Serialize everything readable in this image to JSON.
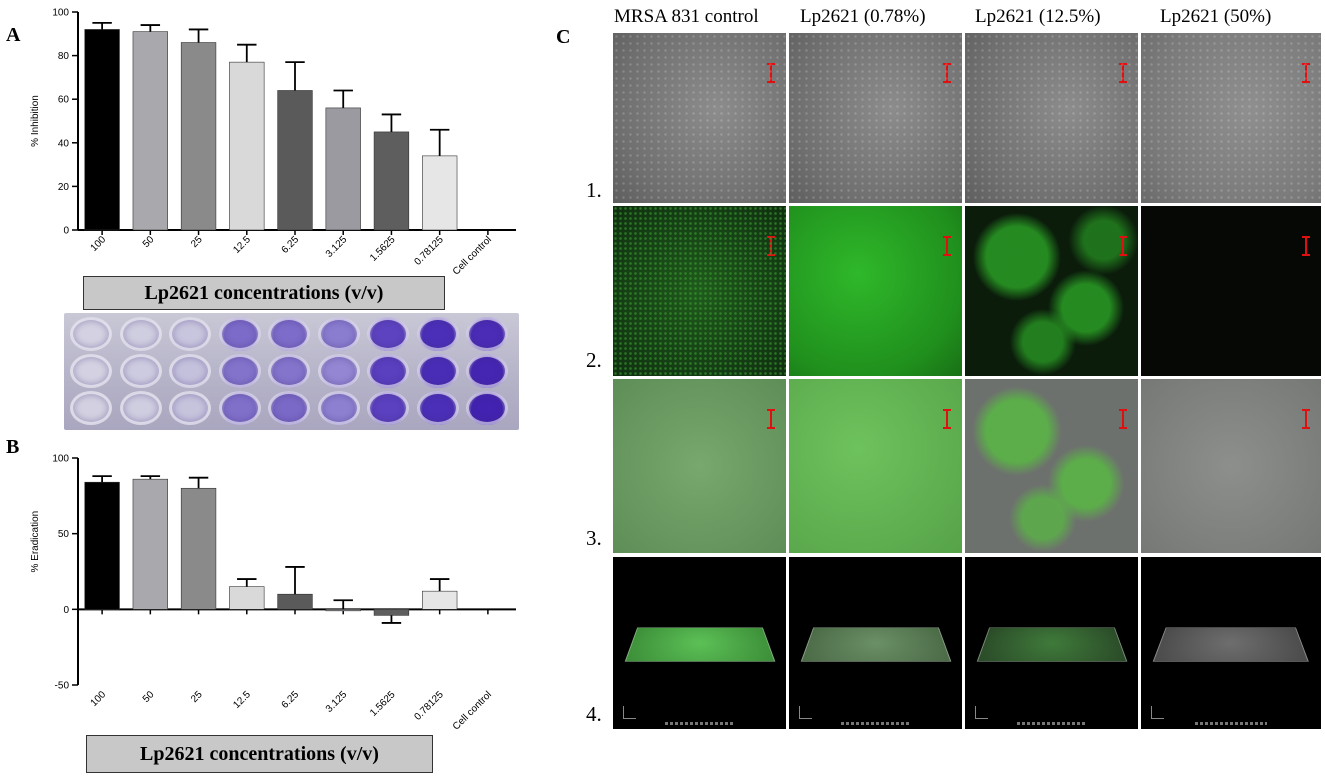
{
  "panels": {
    "a_letter": "A",
    "b_letter": "B",
    "c_letter": "C"
  },
  "concentration_box_label": "Lp2621 concentrations (v/v)",
  "chart_data": [
    {
      "type": "bar",
      "panel": "A",
      "ylabel": "% Inhibition",
      "ylim": [
        0,
        100
      ],
      "yticks": [
        0,
        20,
        40,
        60,
        80,
        100
      ],
      "categories": [
        "100",
        "50",
        "25",
        "12.5",
        "6.25",
        "3.125",
        "1.5625",
        "0.78125",
        "Cell control"
      ],
      "values": [
        92,
        91,
        86,
        77,
        64,
        56,
        45,
        34,
        0
      ],
      "error_plus": [
        3,
        3,
        6,
        8,
        13,
        8,
        8,
        12,
        0
      ],
      "colors": [
        "#000000",
        "#a9a9ad",
        "#8a8a8a",
        "#d9d9d9",
        "#5a5a5a",
        "#9a9aa0",
        "#5e5e5e",
        "#e6e6e6",
        "#ffffff"
      ],
      "grid": false
    },
    {
      "type": "bar",
      "panel": "B",
      "ylabel": "% Eradication",
      "ylim": [
        -50,
        100
      ],
      "yticks": [
        -50,
        0,
        50,
        100
      ],
      "categories": [
        "100",
        "50",
        "25",
        "12.5",
        "6.25",
        "3.125",
        "1.5625",
        "0.78125",
        "Cell control"
      ],
      "values": [
        84,
        86,
        80,
        15,
        10,
        0,
        -4,
        12,
        0
      ],
      "error_plus": [
        4,
        2,
        7,
        5,
        18,
        6,
        5,
        8,
        0
      ],
      "error_minus": [
        4,
        2,
        7,
        5,
        18,
        6,
        5,
        8,
        0
      ],
      "colors": [
        "#000000",
        "#a9a9ad",
        "#8a8a8a",
        "#d9d9d9",
        "#5a5a5a",
        "#9a9aa0",
        "#5e5e5e",
        "#e6e6e6",
        "#ffffff"
      ],
      "grid": false
    }
  ],
  "microscopy": {
    "column_titles": [
      "MRSA 831 control",
      "Lp2621 (0.78%)",
      "Lp2621 (12.5%)",
      "Lp2621 (50%)"
    ],
    "row_labels": [
      "1.",
      "2.",
      "3.",
      "4."
    ]
  },
  "plate_well_colors": [
    [
      "#d4d2e2",
      "#cfcde0",
      "#c8c5de",
      "#7c6bc8",
      "#7d6cc9",
      "#8a7ccf",
      "#5d43c0",
      "#4b2fb8",
      "#4a2cb6"
    ],
    [
      "#d4d2e2",
      "#cdcbe0",
      "#c4c1dd",
      "#8473cb",
      "#8474cb",
      "#9486d2",
      "#5a3fbf",
      "#4a2db7",
      "#4526b3"
    ],
    [
      "#d3d1e1",
      "#cfcde0",
      "#c6c3dd",
      "#8170ca",
      "#7b69c7",
      "#8d80d0",
      "#5b40bf",
      "#4b2fb8",
      "#4223b1"
    ]
  ]
}
